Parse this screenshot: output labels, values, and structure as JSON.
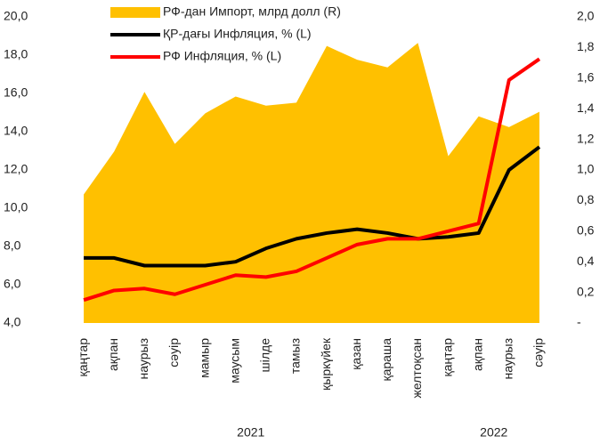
{
  "chart_data": {
    "type": "line",
    "categories": [
      "қаңтар",
      "ақпан",
      "наурыз",
      "сәуір",
      "мамыр",
      "маусым",
      "шілде",
      "тамыз",
      "қыркүйек",
      "қазан",
      "қараша",
      "желтоқсан",
      "қаңтар",
      "ақпан",
      "наурыз",
      "сәуір"
    ],
    "x_group_labels": [
      "2021",
      "2022"
    ],
    "series": [
      {
        "name": "РФ-дан Импорт, млрд долл (R)",
        "type": "area",
        "axis": "y2",
        "color": "#FFC000",
        "values": [
          0.84,
          1.12,
          1.51,
          1.17,
          1.37,
          1.48,
          1.42,
          1.44,
          1.81,
          1.72,
          1.67,
          1.83,
          1.09,
          1.35,
          1.28,
          1.38
        ]
      },
      {
        "name": "ҚР-дағы Инфляция, % (L)",
        "type": "line",
        "color": "#000000",
        "values": [
          7.4,
          7.4,
          7.0,
          7.0,
          7.0,
          7.2,
          7.9,
          8.4,
          8.7,
          8.9,
          8.7,
          8.4,
          8.5,
          8.7,
          12.0,
          13.2
        ]
      },
      {
        "name": "РФ Инфляция, % (L)",
        "type": "line",
        "color": "#FF0000",
        "values": [
          5.2,
          5.7,
          5.8,
          5.5,
          6.0,
          6.5,
          6.4,
          6.7,
          7.4,
          8.1,
          8.4,
          8.4,
          8.8,
          9.2,
          16.7,
          17.8
        ]
      }
    ],
    "ylim": [
      4,
      20
    ],
    "yticks": [
      {
        "value": 4,
        "label": "4,0"
      },
      {
        "value": 6,
        "label": "6,0"
      },
      {
        "value": 8,
        "label": "8,0"
      },
      {
        "value": 10,
        "label": "10,0"
      },
      {
        "value": 12,
        "label": "12,0"
      },
      {
        "value": 14,
        "label": "14,0"
      },
      {
        "value": 16,
        "label": "16,0"
      },
      {
        "value": 18,
        "label": "18,0"
      },
      {
        "value": 20,
        "label": "20,0"
      }
    ],
    "y2lim": [
      0,
      2
    ],
    "y2ticks": [
      {
        "value": 0,
        "label": "-"
      },
      {
        "value": 0.2,
        "label": "0,2"
      },
      {
        "value": 0.4,
        "label": "0,4"
      },
      {
        "value": 0.6,
        "label": "0,6"
      },
      {
        "value": 0.8,
        "label": "0,8"
      },
      {
        "value": 1,
        "label": "1,0"
      },
      {
        "value": 1.2,
        "label": "1,2"
      },
      {
        "value": 1.4,
        "label": "1,4"
      },
      {
        "value": 1.6,
        "label": "1,6"
      },
      {
        "value": 1.8,
        "label": "1,8"
      },
      {
        "value": 2,
        "label": "2,0"
      }
    ],
    "grid": false
  }
}
